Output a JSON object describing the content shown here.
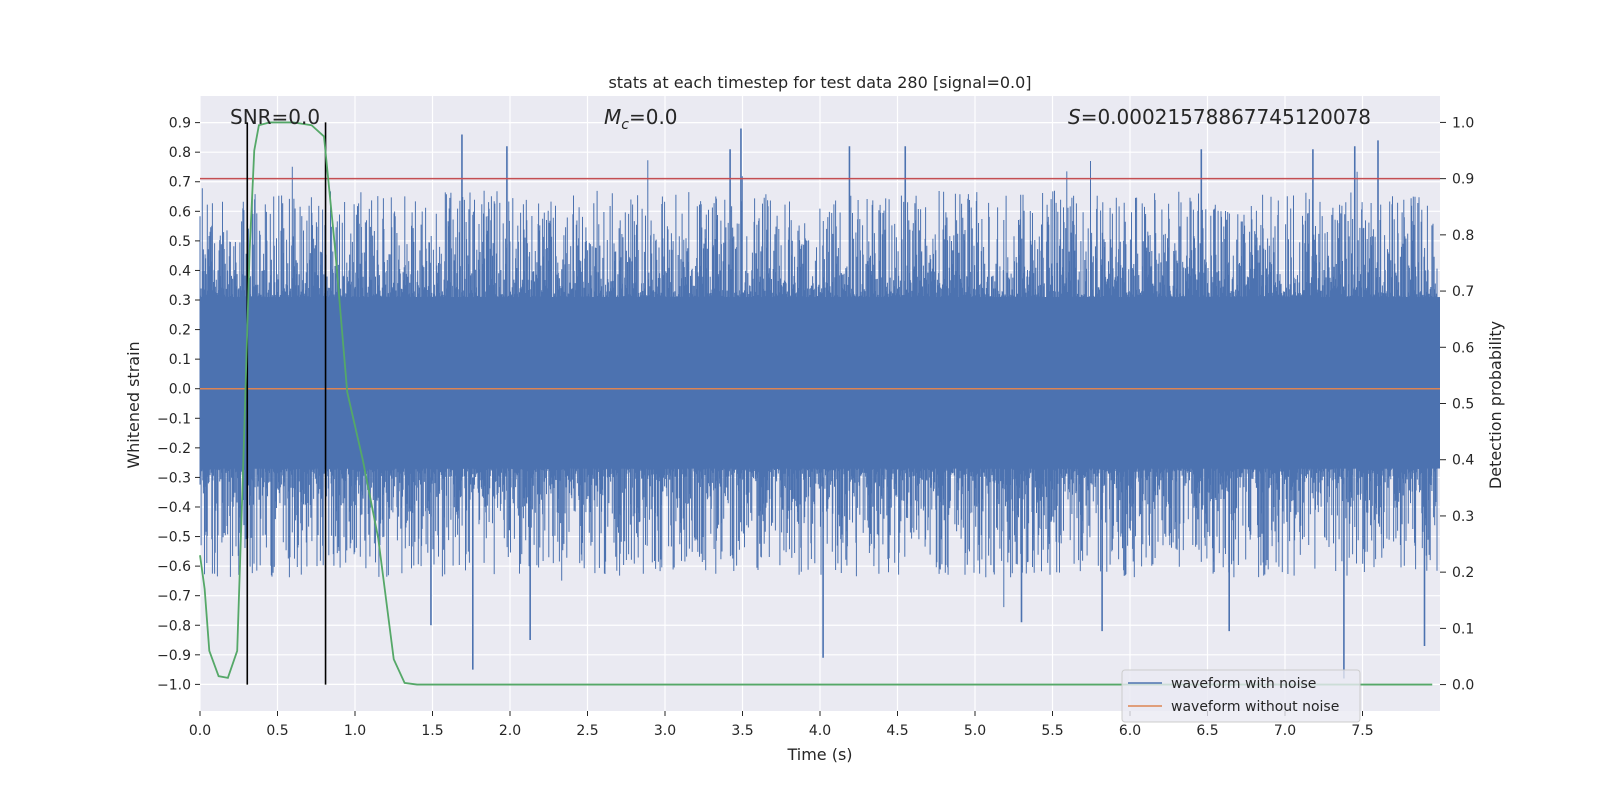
{
  "chart_data": {
    "type": "line",
    "title": "stats at each timestep for test data 280 [signal=0.0]",
    "xlabel": "Time (s)",
    "ylabel": "Whitened strain",
    "y2label": "Detection probability",
    "xlim": [
      0.0,
      8.0
    ],
    "ylim": [
      -1.09,
      0.99
    ],
    "y2lim": [
      -0.047,
      1.047
    ],
    "x_ticks": [
      0.0,
      0.5,
      1.0,
      1.5,
      2.0,
      2.5,
      3.0,
      3.5,
      4.0,
      4.5,
      5.0,
      5.5,
      6.0,
      6.5,
      7.0,
      7.5
    ],
    "x_tick_labels": [
      "0.0",
      "0.5",
      "1.0",
      "1.5",
      "2.0",
      "2.5",
      "3.0",
      "3.5",
      "4.0",
      "4.5",
      "5.0",
      "5.5",
      "6.0",
      "6.5",
      "7.0",
      "7.5"
    ],
    "y_ticks": [
      0.9,
      0.8,
      0.7,
      0.6,
      0.5,
      0.4,
      0.3,
      0.2,
      0.1,
      0.0,
      -0.1,
      -0.2,
      -0.3,
      -0.4,
      -0.5,
      -0.6,
      -0.7,
      -0.8,
      -0.9,
      -1.0
    ],
    "y_tick_labels": [
      "0.9",
      "0.8",
      "0.7",
      "0.6",
      "0.5",
      "0.4",
      "0.3",
      "0.2",
      "0.1",
      "0.0",
      "−0.1",
      "−0.2",
      "−0.3",
      "−0.4",
      "−0.5",
      "−0.6",
      "−0.7",
      "−0.8",
      "−0.9",
      "−1.0"
    ],
    "y2_ticks": [
      1.0,
      0.9,
      0.8,
      0.7,
      0.6,
      0.5,
      0.4,
      0.3,
      0.2,
      0.1,
      0.0
    ],
    "y2_tick_labels": [
      "1.0",
      "0.9",
      "0.8",
      "0.7",
      "0.6",
      "0.5",
      "0.4",
      "0.3",
      "0.2",
      "0.1",
      "0.0"
    ],
    "annotations": {
      "snr": "SNR=0.0",
      "mc_symbol": "M",
      "mc_sub": "c",
      "mc_value": "=0.0",
      "s_symbol": "S",
      "s_value": "=0.00021578867745120078"
    },
    "threshold": {
      "value": 0.9,
      "axis": "right",
      "color": "#c44e52"
    },
    "vlines": [
      0.305,
      0.81
    ],
    "noise": {
      "color": "#4c72b0",
      "core_band": [
        -0.27,
        0.31
      ],
      "typical_max": 0.55,
      "typical_min": -0.5,
      "peaks": [
        {
          "t": 1.69,
          "v": 0.86
        },
        {
          "t": 1.98,
          "v": 0.82
        },
        {
          "t": 3.49,
          "v": 0.88
        },
        {
          "t": 3.42,
          "v": 0.81
        },
        {
          "t": 4.19,
          "v": 0.82
        },
        {
          "t": 4.55,
          "v": 0.82
        },
        {
          "t": 6.46,
          "v": 0.81
        },
        {
          "t": 7.18,
          "v": 0.81
        },
        {
          "t": 7.45,
          "v": 0.82
        },
        {
          "t": 7.6,
          "v": 0.84
        }
      ],
      "troughs": [
        {
          "t": 1.76,
          "v": -0.95
        },
        {
          "t": 2.13,
          "v": -0.85
        },
        {
          "t": 4.02,
          "v": -0.91
        },
        {
          "t": 5.3,
          "v": -0.79
        },
        {
          "t": 5.82,
          "v": -0.82
        },
        {
          "t": 6.64,
          "v": -0.82
        },
        {
          "t": 7.38,
          "v": -0.98
        },
        {
          "t": 7.9,
          "v": -0.87
        },
        {
          "t": 1.49,
          "v": -0.8
        }
      ]
    },
    "series": [
      {
        "name": "waveform with noise",
        "color": "#4c72b0",
        "axis": "left"
      },
      {
        "name": "waveform without noise",
        "color": "#dd8452",
        "axis": "left",
        "x": [
          0.0,
          8.0
        ],
        "y": [
          0.0,
          0.0
        ]
      },
      {
        "name": "detection probability",
        "color": "#55a868",
        "axis": "right",
        "x": [
          0.0,
          0.03,
          0.06,
          0.12,
          0.18,
          0.24,
          0.28,
          0.32,
          0.35,
          0.38,
          0.45,
          0.6,
          0.72,
          0.8,
          0.87,
          0.95,
          1.05,
          1.15,
          1.25,
          1.32,
          1.4,
          2.0,
          4.0,
          6.0,
          7.95
        ],
        "y": [
          0.23,
          0.17,
          0.06,
          0.015,
          0.012,
          0.06,
          0.4,
          0.77,
          0.95,
          0.995,
          1.0,
          1.0,
          0.995,
          0.975,
          0.78,
          0.52,
          0.4,
          0.26,
          0.045,
          0.003,
          0.0,
          0.0,
          0.0,
          0.0,
          0.0
        ]
      }
    ],
    "legend": {
      "position": "lower-right",
      "entries": [
        {
          "label": "waveform with noise",
          "color": "#4c72b0"
        },
        {
          "label": "waveform without noise",
          "color": "#dd8452"
        }
      ]
    },
    "style": {
      "background": "#eaeaf2",
      "grid": true,
      "grid_color": "#ffffff"
    }
  }
}
